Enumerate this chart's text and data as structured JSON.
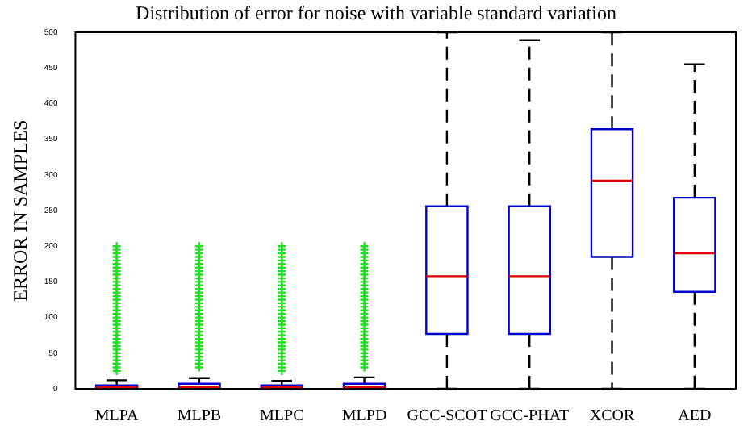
{
  "chart_data": {
    "type": "box",
    "title": "Distribution of error for noise with variable standard variation",
    "ylabel": "ERROR IN SAMPLES",
    "categories": [
      "MLPA",
      "MLPB",
      "MLPC",
      "MLPD",
      "GCC-SCOT",
      "GCC-PHAT",
      "XCOR",
      "AED"
    ],
    "ylim": [
      0,
      500
    ],
    "yticks": [
      0,
      50,
      100,
      150,
      200,
      250,
      300,
      350,
      400,
      450,
      500
    ],
    "grid": false,
    "legend": false,
    "marker": "cross",
    "series": [
      {
        "color": "#0000cc",
        "boxes": [
          {
            "low": 0,
            "q1": 0,
            "median": 2,
            "q3": 5,
            "high": 12,
            "outliers": [
              25,
              30,
              35,
              40,
              45,
              50,
              55,
              60,
              65,
              70,
              75,
              80,
              85,
              90,
              95,
              100,
              105,
              110,
              115,
              120,
              125,
              130,
              135,
              140,
              145,
              150,
              155,
              160,
              165,
              170,
              175,
              180,
              185,
              190,
              195,
              200
            ]
          },
          {
            "low": 0,
            "q1": 0,
            "median": 2,
            "q3": 7,
            "high": 15,
            "outliers": [
              30,
              35,
              40,
              45,
              50,
              55,
              60,
              65,
              70,
              75,
              80,
              85,
              90,
              95,
              100,
              105,
              110,
              115,
              120,
              125,
              130,
              135,
              140,
              145,
              150,
              155,
              160,
              165,
              170,
              175,
              180,
              185,
              190,
              195,
              200
            ]
          },
          {
            "low": 0,
            "q1": 0,
            "median": 2,
            "q3": 5,
            "high": 11,
            "outliers": [
              25,
              30,
              35,
              40,
              45,
              50,
              55,
              60,
              65,
              70,
              75,
              80,
              85,
              90,
              95,
              100,
              105,
              110,
              115,
              120,
              125,
              130,
              135,
              140,
              145,
              150,
              155,
              160,
              165,
              170,
              175,
              180,
              185,
              190,
              195,
              200
            ]
          },
          {
            "low": 0,
            "q1": 0,
            "median": 2,
            "q3": 7,
            "high": 16,
            "outliers": [
              30,
              35,
              40,
              45,
              50,
              55,
              60,
              65,
              70,
              75,
              80,
              85,
              90,
              95,
              100,
              105,
              110,
              115,
              120,
              125,
              130,
              135,
              140,
              145,
              150,
              155,
              160,
              165,
              170,
              175,
              180,
              185,
              190,
              195,
              200
            ]
          },
          {
            "low": 0,
            "q1": 77,
            "median": 158,
            "q3": 256,
            "high": 500
          },
          {
            "low": 0,
            "q1": 77,
            "median": 158,
            "q3": 256,
            "high": 489
          },
          {
            "low": 0,
            "q1": 185,
            "median": 292,
            "q3": 364,
            "high": 500
          },
          {
            "low": 0,
            "q1": 136,
            "median": 190,
            "q3": 268,
            "high": 455
          }
        ]
      }
    ]
  }
}
